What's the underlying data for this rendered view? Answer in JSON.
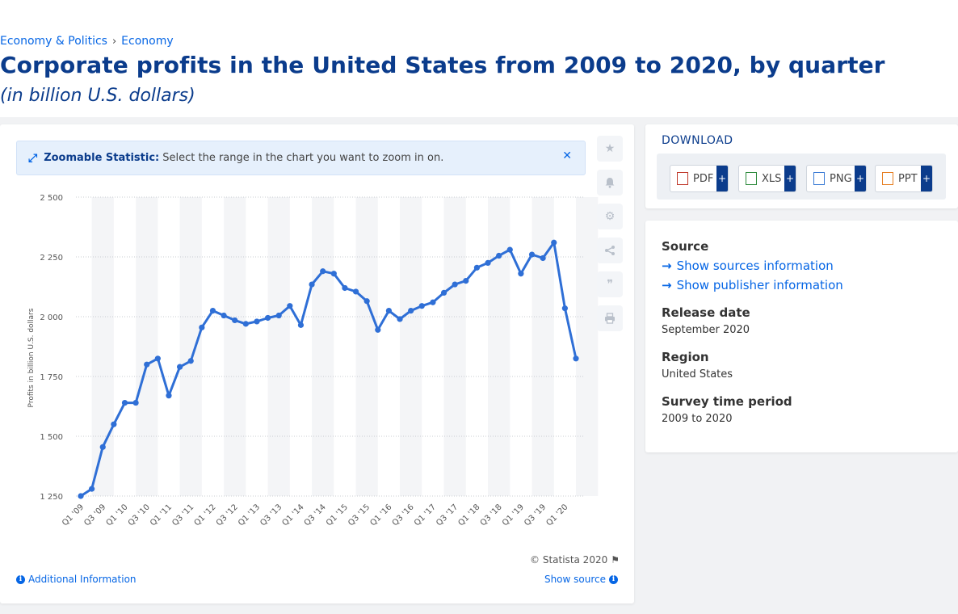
{
  "breadcrumb": {
    "item1": "Economy & Politics",
    "sep": "›",
    "item2": "Economy"
  },
  "page": {
    "title": "Corporate profits in the United States from 2009 to 2020, by quarter",
    "subtitle": "(in billion U.S. dollars)"
  },
  "zoom": {
    "label": "Zoomable Statistic:",
    "text": "Select the range in the chart you want to zoom in on."
  },
  "footer": {
    "copyright": "© Statista 2020",
    "additional": "Additional Information",
    "show_source": "Show source"
  },
  "download": {
    "title": "DOWNLOAD",
    "buttons": [
      "PDF",
      "XLS",
      "PNG",
      "PPT"
    ],
    "plus": "+"
  },
  "info": {
    "source_label": "Source",
    "show_sources": "Show sources information",
    "show_publisher": "Show publisher information",
    "release_label": "Release date",
    "release_value": "September 2020",
    "region_label": "Region",
    "region_value": "United States",
    "period_label": "Survey time period",
    "period_value": "2009 to 2020"
  },
  "colors": {
    "line": "#2f6fd6",
    "accent": "#0666e5",
    "title": "#0b3c8c"
  },
  "chart_data": {
    "type": "line",
    "title": "",
    "xlabel": "",
    "ylabel": "Profits in billion U.S. dollars",
    "ylim": [
      1250,
      2500
    ],
    "yticks": [
      1250,
      1500,
      1750,
      2000,
      2250,
      2500
    ],
    "ytick_labels": [
      "1 250",
      "1 500",
      "1 750",
      "2 000",
      "2 250",
      "2 500"
    ],
    "grid": true,
    "x": [
      "Q1 '09",
      "Q2 '09",
      "Q3 '09",
      "Q4 '09",
      "Q1 '10",
      "Q2 '10",
      "Q3 '10",
      "Q4 '10",
      "Q1 '11",
      "Q2 '11",
      "Q3 '11",
      "Q4 '11",
      "Q1 '12",
      "Q2 '12",
      "Q3 '12",
      "Q4 '12",
      "Q1 '13",
      "Q2 '13",
      "Q3 '13",
      "Q4 '13",
      "Q1 '14",
      "Q2 '14",
      "Q3 '14",
      "Q4 '14",
      "Q1 '15",
      "Q2 '15",
      "Q3 '15",
      "Q4 '15",
      "Q1 '16",
      "Q2 '16",
      "Q3 '16",
      "Q4 '16",
      "Q1 '17",
      "Q2 '17",
      "Q3 '17",
      "Q4 '17",
      "Q1 '18",
      "Q2 '18",
      "Q3 '18",
      "Q4 '18",
      "Q1 '19",
      "Q2 '19",
      "Q3 '19",
      "Q4 '19",
      "Q1 '20",
      "Q2 '20"
    ],
    "xtick_labels": [
      "Q1 '09",
      "Q3 '09",
      "Q1 '10",
      "Q3 '10",
      "Q1 '11",
      "Q3 '11",
      "Q1 '12",
      "Q3 '12",
      "Q1 '13",
      "Q3 '13",
      "Q1 '14",
      "Q3 '14",
      "Q1 '15",
      "Q3 '15",
      "Q1 '16",
      "Q3 '16",
      "Q1 '17",
      "Q3 '17",
      "Q1 '18",
      "Q3 '18",
      "Q1 '19",
      "Q3 '19",
      "Q1 '20"
    ],
    "series": [
      {
        "name": "",
        "values": [
          1250,
          1280,
          1455,
          1550,
          1640,
          1640,
          1800,
          1825,
          1670,
          1790,
          1815,
          1955,
          2025,
          2005,
          1985,
          1970,
          1980,
          1995,
          2005,
          2045,
          1965,
          2135,
          2190,
          2180,
          2120,
          2105,
          2065,
          1945,
          2025,
          1990,
          2025,
          2045,
          2060,
          2100,
          2135,
          2150,
          2205,
          2225,
          2255,
          2280,
          2180,
          2260,
          2245,
          2310,
          2035,
          1825
        ]
      }
    ]
  }
}
